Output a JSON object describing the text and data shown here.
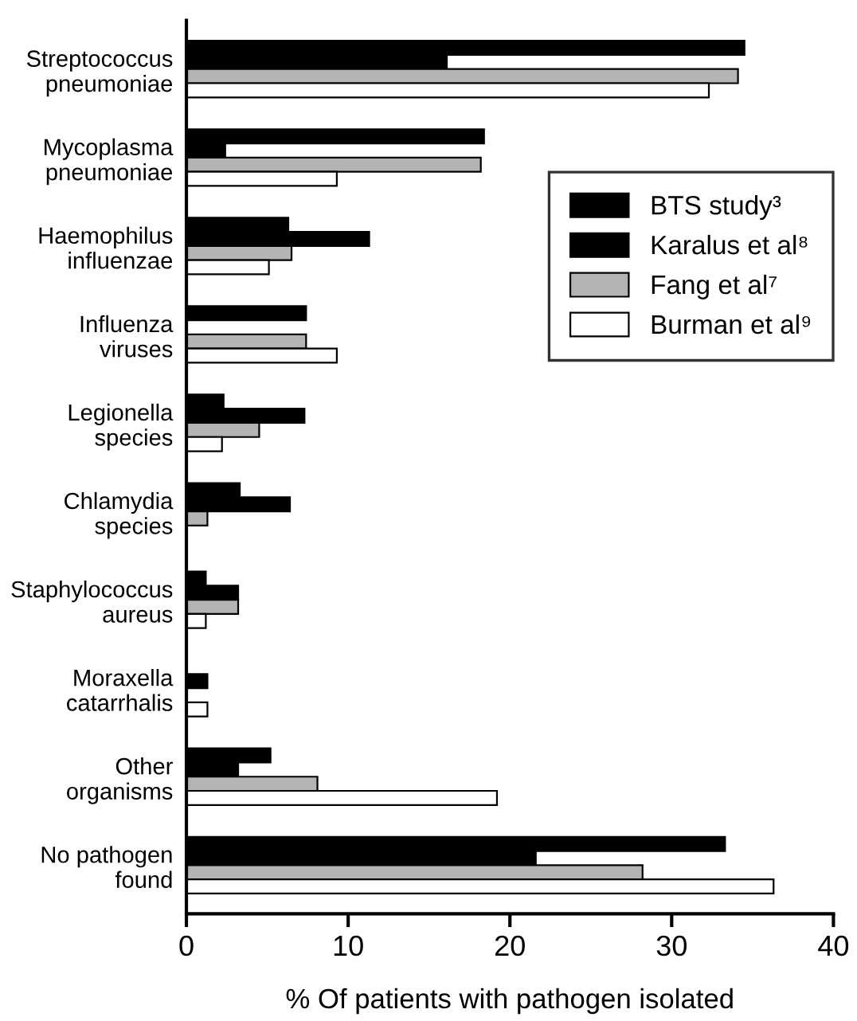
{
  "chart_data": {
    "type": "bar",
    "orientation": "horizontal",
    "xlabel": "% Of patients with pathogen isolated",
    "categories": [
      "Streptococcus\npneumoniae",
      "Mycoplasma\npneumoniae",
      "Haemophilus\ninfluenzae",
      "Influenza\nviruses",
      "Legionella\nspecies",
      "Chlamydia\nspecies",
      "Staphylococcus\naureus",
      "Moraxella\ncatarrhalis",
      "Other\norganisms",
      "No pathogen\nfound"
    ],
    "series": [
      {
        "name": "BTS study³",
        "color": "#000000",
        "values": [
          34.5,
          18.4,
          6.3,
          7.4,
          2.3,
          3.3,
          1.2,
          null,
          5.2,
          33.3
        ]
      },
      {
        "name": "Karalus et al⁸",
        "color": "#000000",
        "values": [
          16.1,
          2.4,
          11.3,
          null,
          7.3,
          6.4,
          3.2,
          1.3,
          3.2,
          21.6
        ]
      },
      {
        "name": "Fang et al⁷",
        "color": "#b4b4b4",
        "values": [
          34.1,
          18.2,
          6.5,
          7.4,
          4.5,
          1.3,
          3.2,
          null,
          8.1,
          28.2
        ]
      },
      {
        "name": "Burman et al⁹",
        "color": "#ffffff",
        "values": [
          32.3,
          9.3,
          5.1,
          9.3,
          2.2,
          null,
          1.2,
          1.3,
          19.2,
          36.3
        ]
      }
    ],
    "xlim": [
      0,
      40
    ],
    "xticks": [
      0,
      10,
      20,
      30,
      40
    ],
    "grid": false,
    "legend": "top right"
  }
}
